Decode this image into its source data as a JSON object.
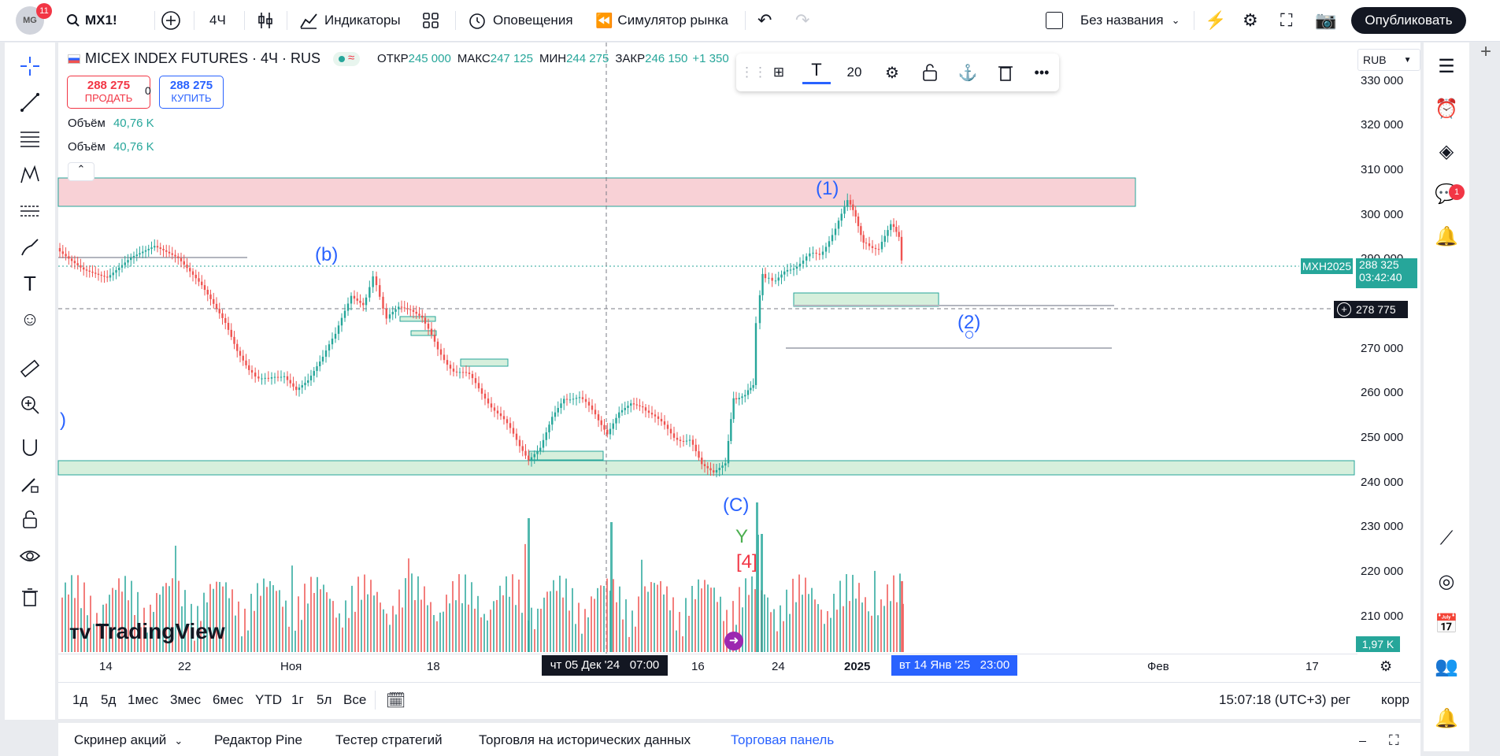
{
  "topbar": {
    "avatar_text": "MG",
    "avatar_badge": "11",
    "symbol": "MX1!",
    "interval": "4Ч",
    "indicators": "Индикаторы",
    "alerts": "Оповещения",
    "replay": "Симулятор рынка",
    "layout_name": "Без названия",
    "publish": "Опубликовать"
  },
  "legend": {
    "title": "MICEX INDEX FUTURES · 4Ч · RUS",
    "open_label": "ОТКР",
    "open": "245 000",
    "high_label": "МАКС",
    "high": "247 125",
    "low_label": "МИН",
    "low": "244 275",
    "close_label": "ЗАКР",
    "close": "246 150",
    "change": "+1 350",
    "sell_price": "288 275",
    "sell_label": "ПРОДАТЬ",
    "spread": "0",
    "buy_price": "288 275",
    "buy_label": "КУПИТЬ",
    "volume_label_1": "Объём",
    "volume_value_1": "40,76 K",
    "volume_label_2": "Объём",
    "volume_value_2": "40,76 K"
  },
  "floating_toolbar": {
    "font_size": "20"
  },
  "currency": "RUB",
  "price_scale": [
    "330 000",
    "320 000",
    "310 000",
    "300 000",
    "290 000",
    "270 000",
    "260 000",
    "250 000",
    "240 000",
    "230 000",
    "220 000",
    "210 000"
  ],
  "price_labels": {
    "symbol_tag": "MXH2025",
    "last_price": "288 325",
    "countdown": "03:42:40",
    "crosshair_price": "278 775",
    "volume_tag": "1,97 K"
  },
  "time_scale": [
    "14",
    "22",
    "Ноя",
    "18",
    "16",
    "24",
    "2025",
    "Фев",
    "17"
  ],
  "time_labels": {
    "crosshair_time": "чт 05 Дек '24   07:00",
    "range_end_time": "вт 14 Янв '25   23:00"
  },
  "wave_labels": [
    "(1)",
    "(b)",
    "(2)",
    "(C)",
    "Y",
    "[4]",
    ")"
  ],
  "watermark": "TradingView",
  "range_buttons": [
    "1д",
    "5д",
    "1мес",
    "3мес",
    "6мес",
    "YTD",
    "1г",
    "5л",
    "Все"
  ],
  "range_status": {
    "clock": "15:07:18 (UTC+3)",
    "session": "рег",
    "adjust": "корр"
  },
  "bottom_tabs": [
    "Скринер акций",
    "Редактор Pine",
    "Тестер стратегий",
    "Торговля на исторических данных",
    "Торговая панель"
  ],
  "right_badge": "1",
  "colors": {
    "up": "#26a69a",
    "down": "#ef5350",
    "accent": "#2962ff",
    "zone_red": "#f7c5cb",
    "zone_green": "#cdebd6"
  }
}
